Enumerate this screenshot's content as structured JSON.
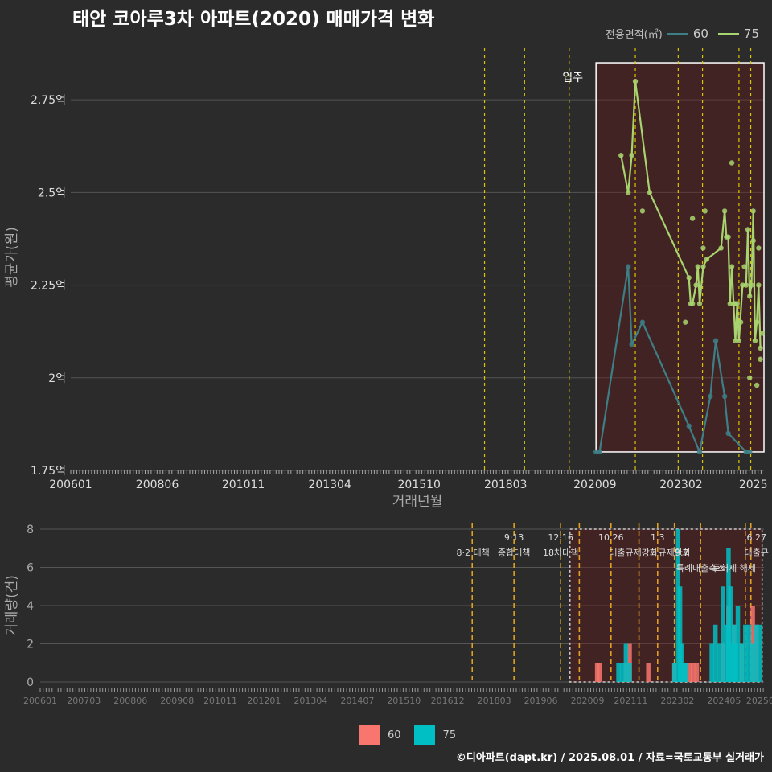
{
  "title": "태안 코아루3차 아파트(2020) 매매가격 변화",
  "legend": {
    "label": "전용면적(㎡)",
    "items": [
      {
        "name": "60",
        "color": "#3d7f86"
      },
      {
        "name": "75",
        "color": "#a8d46f"
      }
    ]
  },
  "credit": "©디아파트(dapt.kr) / 2025.08.01 / 자료=국토교통부 실거래가",
  "colors": {
    "line60": "#3d7f86",
    "line75": "#a8d46f",
    "bar60": "#f8766d",
    "bar75": "#00bfc4",
    "vline": "#d9c500",
    "vline2": "#e0a020"
  },
  "chart_data": [
    {
      "type": "line",
      "title": "태안 코아루3차 아파트(2020) 매매가격 변화",
      "xlabel": "거래년월",
      "ylabel": "평균가(원)",
      "xlim": [
        2006.0,
        2025.4
      ],
      "ylim": [
        1.75,
        2.9
      ],
      "x_ticks": [
        {
          "x": 2006.0,
          "label": "200601"
        },
        {
          "x": 2008.42,
          "label": "200806"
        },
        {
          "x": 2010.83,
          "label": "201011"
        },
        {
          "x": 2013.25,
          "label": "201304"
        },
        {
          "x": 2015.75,
          "label": "201510"
        },
        {
          "x": 2018.17,
          "label": "201803"
        },
        {
          "x": 2020.67,
          "label": "202009"
        },
        {
          "x": 2023.08,
          "label": "202302"
        },
        {
          "x": 2025.1,
          "label": "2025"
        }
      ],
      "y_ticks": [
        {
          "y": 1.75,
          "label": "1.75억"
        },
        {
          "y": 2.0,
          "label": "2억"
        },
        {
          "y": 2.25,
          "label": "2.25억"
        },
        {
          "y": 2.5,
          "label": "2.5억"
        },
        {
          "y": 2.75,
          "label": "2.75억"
        }
      ],
      "event_lines": [
        2017.58,
        2018.7,
        2019.95,
        2021.8,
        2023.0,
        2023.68,
        2024.7,
        2025.03
      ],
      "annotation": {
        "x": 2020.05,
        "y": 2.8,
        "text": "입주"
      },
      "highlight": {
        "x0": 2020.7,
        "x1": 2025.4,
        "y0": 1.8,
        "y1": 2.85
      },
      "series": [
        {
          "name": "60",
          "x": [
            2020.7,
            2020.8,
            2021.6,
            2021.7,
            2022.0,
            2023.3,
            2023.6,
            2023.9,
            2024.05,
            2024.3,
            2024.4,
            2024.9,
            2025.0
          ],
          "y": [
            1.8,
            1.8,
            2.3,
            2.09,
            2.15,
            1.87,
            1.8,
            1.95,
            2.1,
            1.95,
            1.85,
            1.8,
            1.8
          ]
        },
        {
          "name": "75",
          "x": [
            2021.4,
            2021.6,
            2021.7,
            2021.8,
            2022.2,
            2023.3,
            2023.35,
            2023.4,
            2023.5,
            2023.55,
            2023.6,
            2023.7,
            2023.8,
            2024.2,
            2024.3,
            2024.35,
            2024.4,
            2024.45,
            2024.5,
            2024.55,
            2024.6,
            2024.65,
            2024.7,
            2024.8,
            2024.9,
            2024.95,
            2025.0,
            2025.05,
            2025.1,
            2025.15,
            2025.2,
            2025.25,
            2025.3
          ],
          "y": [
            2.6,
            2.5,
            2.6,
            2.8,
            2.5,
            2.27,
            2.2,
            2.2,
            2.25,
            2.3,
            2.2,
            2.3,
            2.32,
            2.35,
            2.45,
            2.38,
            2.38,
            2.2,
            2.3,
            2.2,
            2.1,
            2.2,
            2.1,
            2.25,
            2.25,
            2.4,
            2.22,
            2.25,
            2.45,
            2.1,
            2.15,
            2.25,
            2.08
          ]
        },
        {
          "name": "75-points",
          "x": [
            2022.0,
            2023.2,
            2023.4,
            2023.7,
            2023.75,
            2024.5,
            2024.75,
            2024.85,
            2025.0,
            2025.1,
            2025.2,
            2025.3,
            2025.35,
            2024.6,
            2025.25
          ],
          "y": [
            2.45,
            2.15,
            2.43,
            2.35,
            2.45,
            2.58,
            2.15,
            2.3,
            2.0,
            2.37,
            1.98,
            2.05,
            2.12,
            2.2,
            2.35
          ]
        }
      ]
    },
    {
      "type": "bar",
      "ylabel": "거래량(건)",
      "xlim": [
        2006.0,
        2025.4
      ],
      "ylim": [
        0,
        8
      ],
      "y_ticks": [
        0,
        2,
        4,
        6,
        8
      ],
      "x_ticks": [
        {
          "x": 2006.0,
          "label": "200601"
        },
        {
          "x": 2007.17,
          "label": "200703"
        },
        {
          "x": 2008.42,
          "label": "200806"
        },
        {
          "x": 2009.67,
          "label": "200908"
        },
        {
          "x": 2010.83,
          "label": "201011"
        },
        {
          "x": 2012.0,
          "label": "201201"
        },
        {
          "x": 2013.25,
          "label": "201304"
        },
        {
          "x": 2014.5,
          "label": "201407"
        },
        {
          "x": 2015.75,
          "label": "201510"
        },
        {
          "x": 2016.92,
          "label": "201612"
        },
        {
          "x": 2018.17,
          "label": "201803"
        },
        {
          "x": 2019.42,
          "label": "201906"
        },
        {
          "x": 2020.67,
          "label": "202009"
        },
        {
          "x": 2021.83,
          "label": "202111"
        },
        {
          "x": 2023.08,
          "label": "202302"
        },
        {
          "x": 2024.33,
          "label": "202405"
        },
        {
          "x": 2025.3,
          "label": "20250"
        }
      ],
      "event_lines": [
        2017.58,
        2018.7,
        2019.95,
        2020.45,
        2021.3,
        2022.05,
        2022.55,
        2023.0,
        2023.7,
        2024.9,
        2025.05
      ],
      "event_labels": [
        {
          "x": 2017.6,
          "row": 1,
          "text": "8·2 대책"
        },
        {
          "x": 2018.7,
          "row": 0,
          "text": "9·13"
        },
        {
          "x": 2018.7,
          "row": 1,
          "text": "종합대책"
        },
        {
          "x": 2019.95,
          "row": 0,
          "text": "12·16"
        },
        {
          "x": 2019.95,
          "row": 1,
          "text": "18차대책"
        },
        {
          "x": 2021.3,
          "row": 0,
          "text": "10.26"
        },
        {
          "x": 2021.9,
          "row": 1,
          "text": "대출규제강화"
        },
        {
          "x": 2022.55,
          "row": 0,
          "text": "1.3"
        },
        {
          "x": 2023.0,
          "row": 1,
          "text": "규제완화"
        },
        {
          "x": 2023.2,
          "row": 1,
          "text": "9.7"
        },
        {
          "x": 2023.7,
          "row": 2,
          "text": "특례대출축소"
        },
        {
          "x": 2024.6,
          "row": 2,
          "text": "토허제 해제"
        },
        {
          "x": 2025.2,
          "row": 0,
          "text": "6.27"
        },
        {
          "x": 2025.2,
          "row": 1,
          "text": "대출규"
        }
      ],
      "highlight": {
        "x0": 2020.2,
        "x1": 2025.35,
        "y0": 0,
        "y1": 8
      },
      "series": [
        {
          "name": "60",
          "x": [
            2020.93,
            2021.0,
            2021.7,
            2021.8,
            2022.3,
            2023.0,
            2023.2,
            2023.3,
            2023.4,
            2023.5,
            2023.6,
            2024.3,
            2024.45,
            2024.6,
            2024.8,
            2025.1,
            2025.2
          ],
          "y": [
            1,
            1,
            1,
            2,
            1,
            1,
            1,
            1,
            1,
            1,
            1,
            2,
            4,
            3,
            2,
            4,
            3
          ]
        },
        {
          "name": "75",
          "x": [
            2021.5,
            2021.6,
            2021.7,
            2021.8,
            2023.0,
            2023.1,
            2023.15,
            2023.2,
            2023.25,
            2023.3,
            2024.0,
            2024.1,
            2024.2,
            2024.3,
            2024.4,
            2024.45,
            2024.5,
            2024.55,
            2024.6,
            2024.65,
            2024.7,
            2024.8,
            2024.9,
            2025.0,
            2025.1,
            2025.2,
            2025.3
          ],
          "y": [
            1,
            1,
            2,
            1,
            1,
            8,
            5,
            2,
            1,
            1,
            2,
            3,
            2,
            5,
            3,
            7,
            5,
            2,
            3,
            2,
            4,
            2,
            3,
            3,
            2,
            3,
            3
          ]
        }
      ]
    }
  ],
  "legend_bottom": [
    {
      "name": "60",
      "color": "#f8766d"
    },
    {
      "name": "75",
      "color": "#00bfc4"
    }
  ]
}
